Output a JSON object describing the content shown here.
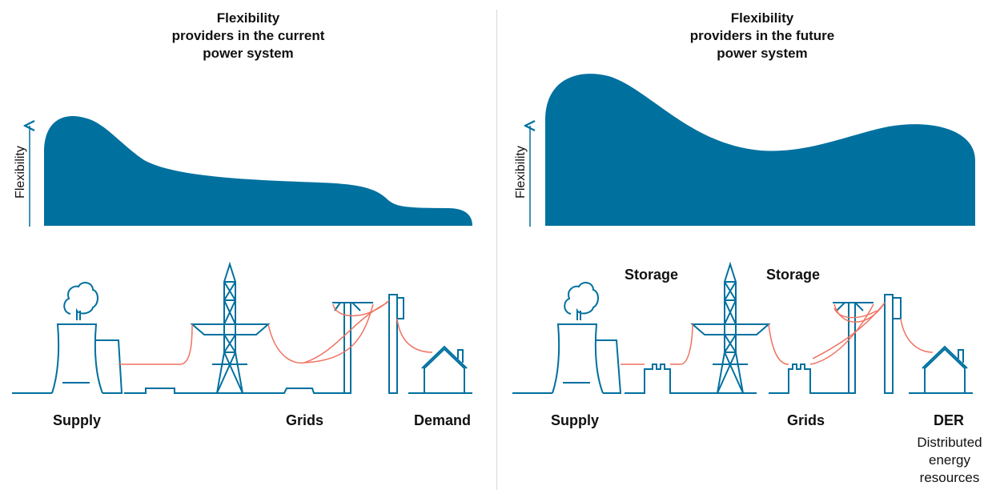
{
  "left": {
    "title_lines": [
      "Flexibility",
      "providers in the current",
      "power system"
    ],
    "axis_label": "Flexibility",
    "labels": {
      "supply": "Supply",
      "grids": "Grids",
      "demand": "Demand"
    }
  },
  "right": {
    "title_lines": [
      "Flexibility",
      "providers in the future",
      "power system"
    ],
    "axis_label": "Flexibility",
    "labels": {
      "storage_1": "Storage",
      "storage_2": "Storage",
      "supply": "Supply",
      "grids": "Grids",
      "der": "DER",
      "der_desc": [
        "Distributed",
        "energy",
        "resources"
      ]
    }
  },
  "colors": {
    "blue": "#00709f",
    "red": "#f07261"
  }
}
